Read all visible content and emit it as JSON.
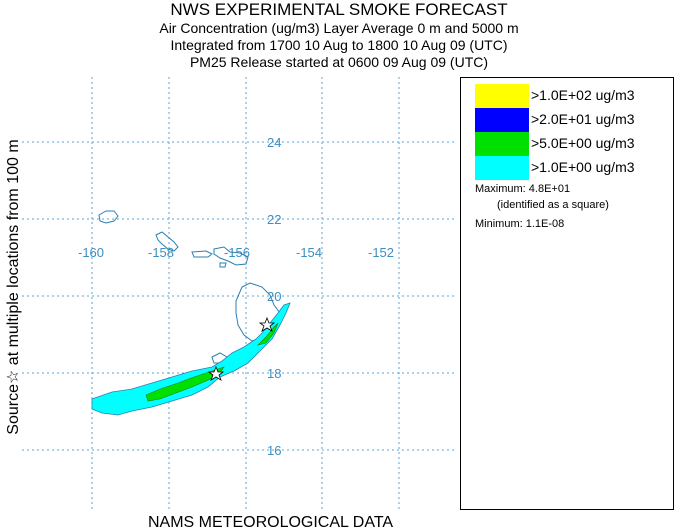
{
  "header": {
    "title": "NWS EXPERIMENTAL SMOKE FORECAST",
    "line2": "Air Concentration (ug/m3) Layer Average    0 m and  5000 m",
    "line3": "Integrated from 1700 10 Aug to 1800 10 Aug 09 (UTC)",
    "line4": "PM25 Release started at 0600 09 Aug 09 (UTC)"
  },
  "side_label": "Source☆  at multiple locations   from  100 m",
  "footer": "NAMS METEOROLOGICAL DATA",
  "map": {
    "longitude_labels": [
      "-160",
      "-158",
      "-156",
      "-154",
      "-152"
    ],
    "latitude_labels": [
      "24",
      "22",
      "20",
      "18",
      "16"
    ],
    "graticule_color": "#5aa6d6",
    "coast_color": "#2b7fb3"
  },
  "legend": {
    "items": [
      {
        "label": ">1.0E+02 ug/m3",
        "color": "#ffff00"
      },
      {
        "label": ">2.0E+01 ug/m3",
        "color": "#0000ff"
      },
      {
        "label": ">5.0E+00 ug/m3",
        "color": "#00e000"
      },
      {
        "label": ">1.0E+00 ug/m3",
        "color": "#00ffff"
      }
    ],
    "maximum": "Maximum: 4.8E+01",
    "maximum_note": "(identified as a square)",
    "minimum": "Minimum: 1.1E-08"
  }
}
